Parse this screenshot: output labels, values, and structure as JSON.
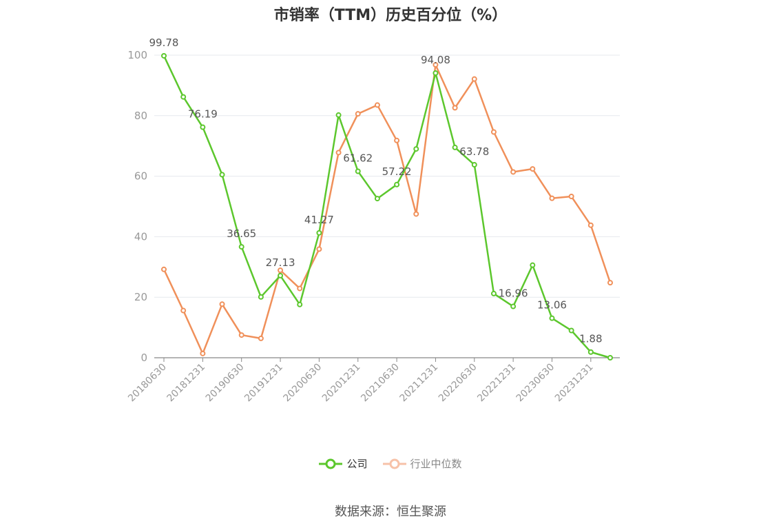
{
  "chart_data": {
    "type": "line",
    "title": "市销率（TTM）历史百分位（%）",
    "x": [
      "20180630",
      "20180930",
      "20181231",
      "20190331",
      "20190630",
      "20190930",
      "20191231",
      "20200331",
      "20200630",
      "20200930",
      "20201231",
      "20210331",
      "20210630",
      "20210930",
      "20211231",
      "20220331",
      "20220630",
      "20220930",
      "20221231",
      "20230331",
      "20230630",
      "20230930",
      "20231231",
      "20240331"
    ],
    "x_tick_labels": [
      "20180630",
      "20181231",
      "20190630",
      "20191231",
      "20200630",
      "20201231",
      "20210630",
      "20211231",
      "20220630",
      "20221231",
      "20230630",
      "20231231"
    ],
    "ylim": [
      0,
      100
    ],
    "y_ticks": [
      0,
      20,
      40,
      60,
      80,
      100
    ],
    "grid": true,
    "legend_position": "bottom-center",
    "series": [
      {
        "name": "公司",
        "color": "#5cc72d",
        "values": [
          99.78,
          86.2,
          76.19,
          60.5,
          36.65,
          20.1,
          27.13,
          17.6,
          41.27,
          80.2,
          61.62,
          52.6,
          57.22,
          69.0,
          94.08,
          69.5,
          63.78,
          21.2,
          16.96,
          30.6,
          13.06,
          9.0,
          1.88,
          0.0
        ],
        "labels": {
          "0": "99.78",
          "2": "76.19",
          "4": "36.65",
          "6": "27.13",
          "8": "41.27",
          "10": "61.62",
          "12": "57.22",
          "14": "94.08",
          "16": "63.78",
          "18": "16.96",
          "20": "13.06",
          "22": "1.88"
        }
      },
      {
        "name": "行业中位数",
        "color": "#f0905a",
        "values": [
          29.2,
          15.6,
          1.4,
          17.7,
          7.5,
          6.4,
          28.9,
          22.9,
          35.9,
          67.8,
          80.6,
          83.5,
          71.8,
          47.5,
          96.8,
          82.6,
          92.1,
          74.6,
          61.4,
          62.4,
          52.7,
          53.3,
          43.8,
          24.8
        ]
      }
    ]
  },
  "legend": {
    "company": "公司",
    "industry": "行业中位数"
  },
  "source": "数据来源：恒生聚源"
}
